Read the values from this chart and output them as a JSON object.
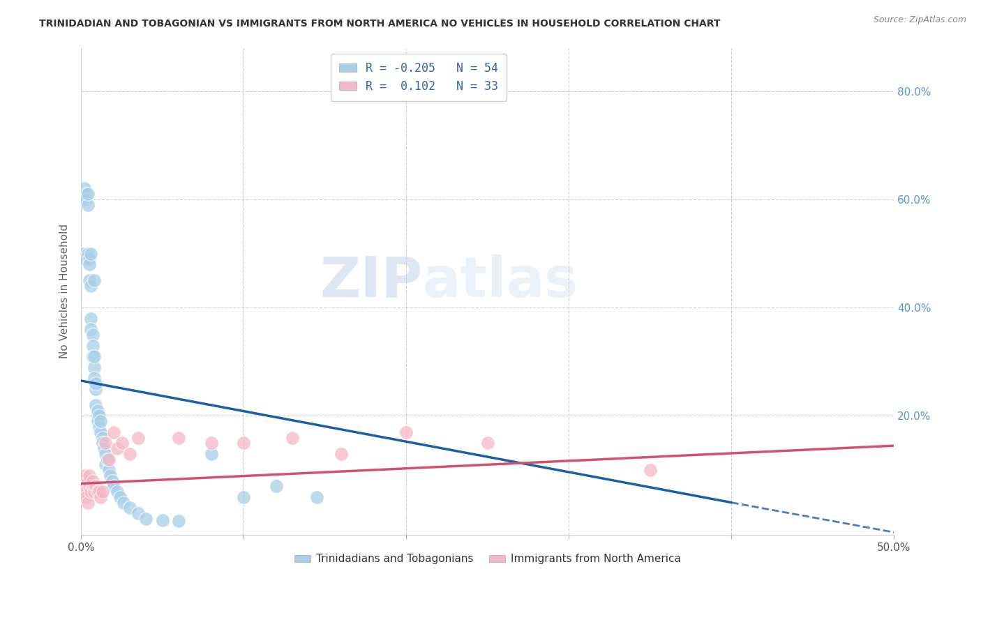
{
  "title": "TRINIDADIAN AND TOBAGONIAN VS IMMIGRANTS FROM NORTH AMERICA NO VEHICLES IN HOUSEHOLD CORRELATION CHART",
  "source": "Source: ZipAtlas.com",
  "ylabel": "No Vehicles in Household",
  "xlim": [
    0.0,
    0.5
  ],
  "ylim": [
    -0.02,
    0.88
  ],
  "xticks": [
    0.0,
    0.1,
    0.2,
    0.3,
    0.4,
    0.5
  ],
  "xticklabels": [
    "0.0%",
    "",
    "",
    "",
    "",
    "50.0%"
  ],
  "yticks_right": [
    0.0,
    0.2,
    0.4,
    0.6,
    0.8
  ],
  "yticklabels_right": [
    "",
    "20.0%",
    "40.0%",
    "60.0%",
    "80.0%"
  ],
  "legend1_R": "-0.205",
  "legend1_N": "54",
  "legend2_R": " 0.102",
  "legend2_N": "33",
  "blue_color": "#a8cfe8",
  "pink_color": "#f4b8c8",
  "blue_line_color": "#1a5fa8",
  "pink_line_color": "#d45070",
  "watermark_zip": "ZIP",
  "watermark_atlas": "atlas",
  "blue_scatter_x": [
    0.001,
    0.002,
    0.002,
    0.003,
    0.003,
    0.004,
    0.004,
    0.004,
    0.005,
    0.005,
    0.005,
    0.006,
    0.006,
    0.006,
    0.006,
    0.007,
    0.007,
    0.007,
    0.008,
    0.008,
    0.008,
    0.008,
    0.009,
    0.009,
    0.009,
    0.01,
    0.01,
    0.01,
    0.011,
    0.011,
    0.012,
    0.012,
    0.013,
    0.013,
    0.014,
    0.015,
    0.015,
    0.016,
    0.017,
    0.018,
    0.019,
    0.02,
    0.022,
    0.024,
    0.026,
    0.03,
    0.035,
    0.04,
    0.05,
    0.06,
    0.08,
    0.1,
    0.12,
    0.145
  ],
  "blue_scatter_y": [
    0.5,
    0.49,
    0.62,
    0.61,
    0.6,
    0.59,
    0.61,
    0.5,
    0.49,
    0.48,
    0.45,
    0.38,
    0.36,
    0.44,
    0.5,
    0.35,
    0.33,
    0.31,
    0.29,
    0.27,
    0.31,
    0.45,
    0.25,
    0.22,
    0.26,
    0.2,
    0.19,
    0.21,
    0.2,
    0.18,
    0.17,
    0.19,
    0.16,
    0.15,
    0.14,
    0.13,
    0.11,
    0.12,
    0.1,
    0.09,
    0.08,
    0.07,
    0.06,
    0.05,
    0.04,
    0.03,
    0.02,
    0.01,
    0.008,
    0.006,
    0.13,
    0.05,
    0.07,
    0.05
  ],
  "pink_scatter_x": [
    0.001,
    0.002,
    0.002,
    0.003,
    0.003,
    0.004,
    0.004,
    0.005,
    0.005,
    0.006,
    0.007,
    0.007,
    0.008,
    0.009,
    0.01,
    0.011,
    0.012,
    0.013,
    0.015,
    0.017,
    0.02,
    0.022,
    0.025,
    0.03,
    0.035,
    0.06,
    0.08,
    0.1,
    0.13,
    0.16,
    0.2,
    0.25,
    0.35
  ],
  "pink_scatter_y": [
    0.08,
    0.07,
    0.09,
    0.06,
    0.05,
    0.04,
    0.08,
    0.07,
    0.09,
    0.06,
    0.07,
    0.08,
    0.06,
    0.07,
    0.06,
    0.06,
    0.05,
    0.06,
    0.15,
    0.12,
    0.17,
    0.14,
    0.15,
    0.13,
    0.16,
    0.16,
    0.15,
    0.15,
    0.16,
    0.13,
    0.17,
    0.15,
    0.1
  ],
  "blue_line_x0": 0.0,
  "blue_line_y0": 0.265,
  "blue_line_x1": 0.4,
  "blue_line_y1": 0.04,
  "blue_line_dash_x1": 0.5,
  "blue_line_dash_y1": -0.015,
  "pink_line_x0": 0.0,
  "pink_line_y0": 0.075,
  "pink_line_x1": 0.5,
  "pink_line_y1": 0.145
}
